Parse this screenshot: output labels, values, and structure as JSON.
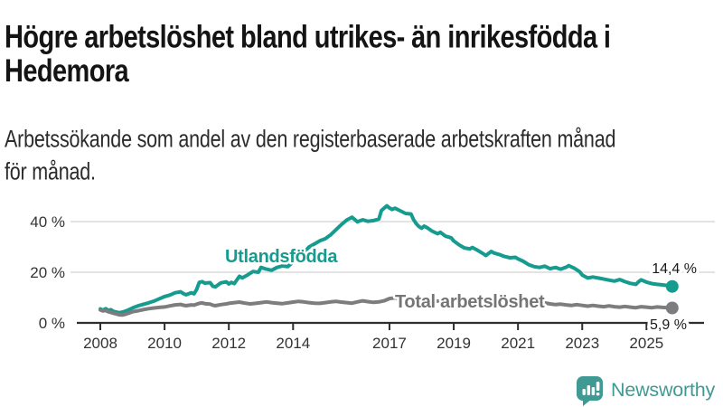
{
  "header": {
    "title_line1": "Högre arbetslöshet bland utrikes- än inrikesfödda i",
    "title_line2": "Hedemora",
    "subtitle_line1": "Arbetssökande som andel av den registerbaserade arbetskraften månad",
    "subtitle_line2": "för månad."
  },
  "footer": {
    "brand": "Newsworthy"
  },
  "colors": {
    "teal": "#169b8f",
    "gray": "#7d7d7f",
    "grid": "#dadada",
    "axis": "#2e2e2e",
    "tick_text": "#333333",
    "annotation_text": "#1a1a1a",
    "logo_teal": "#3f9a93"
  },
  "chart_data": {
    "type": "line",
    "title": "Högre arbetslöshet bland utrikes- än inrikesfödda i Hedemora",
    "subtitle": "Arbetssökande som andel av den registerbaserade arbetskraften månad för månad.",
    "unit": "%",
    "grid": "horizontal",
    "x_axis": {
      "ticks": [
        2008,
        2010,
        2012,
        2014,
        2017,
        2019,
        2021,
        2023,
        2025
      ],
      "range": [
        2007.3,
        2026.9
      ]
    },
    "y_axis": {
      "ticks": [
        {
          "value": 0,
          "label": "0 %"
        },
        {
          "value": 20,
          "label": "20 %"
        },
        {
          "value": 40,
          "label": "40 %"
        }
      ],
      "range": [
        0,
        50
      ]
    },
    "series": [
      {
        "name": "Utlandsfödda",
        "color": "#169b8f",
        "end_label": "14,4 %",
        "end_value": 14.4,
        "points": [
          [
            2008.0,
            5.5
          ],
          [
            2008.08,
            5.0
          ],
          [
            2008.17,
            5.6
          ],
          [
            2008.25,
            4.9
          ],
          [
            2008.33,
            5.2
          ],
          [
            2008.42,
            4.5
          ],
          [
            2008.5,
            4.3
          ],
          [
            2008.58,
            4.0
          ],
          [
            2008.67,
            4.2
          ],
          [
            2008.75,
            4.5
          ],
          [
            2008.83,
            4.9
          ],
          [
            2008.92,
            5.4
          ],
          [
            2009.0,
            5.9
          ],
          [
            2009.17,
            6.7
          ],
          [
            2009.33,
            7.3
          ],
          [
            2009.5,
            7.9
          ],
          [
            2009.67,
            8.6
          ],
          [
            2009.83,
            9.5
          ],
          [
            2010.0,
            10.4
          ],
          [
            2010.17,
            11.0
          ],
          [
            2010.33,
            11.9
          ],
          [
            2010.5,
            12.3
          ],
          [
            2010.58,
            11.6
          ],
          [
            2010.67,
            11.1
          ],
          [
            2010.83,
            11.9
          ],
          [
            2010.92,
            11.5
          ],
          [
            2011.0,
            13.2
          ],
          [
            2011.08,
            16.0
          ],
          [
            2011.17,
            16.3
          ],
          [
            2011.25,
            15.7
          ],
          [
            2011.42,
            15.9
          ],
          [
            2011.5,
            14.5
          ],
          [
            2011.58,
            14.2
          ],
          [
            2011.75,
            15.8
          ],
          [
            2011.92,
            16.2
          ],
          [
            2012.0,
            15.4
          ],
          [
            2012.08,
            16.0
          ],
          [
            2012.17,
            15.5
          ],
          [
            2012.33,
            18.4
          ],
          [
            2012.42,
            17.8
          ],
          [
            2012.58,
            18.9
          ],
          [
            2012.75,
            20.3
          ],
          [
            2012.92,
            20.0
          ],
          [
            2013.0,
            21.9
          ],
          [
            2013.17,
            21.2
          ],
          [
            2013.33,
            20.8
          ],
          [
            2013.5,
            21.9
          ],
          [
            2013.67,
            22.5
          ],
          [
            2013.83,
            22.2
          ],
          [
            2014.0,
            24.0
          ],
          [
            2014.17,
            26.0
          ],
          [
            2014.33,
            27.8
          ],
          [
            2014.5,
            30.0
          ],
          [
            2014.67,
            31.2
          ],
          [
            2014.83,
            32.4
          ],
          [
            2015.0,
            33.2
          ],
          [
            2015.17,
            34.8
          ],
          [
            2015.33,
            36.7
          ],
          [
            2015.5,
            38.8
          ],
          [
            2015.67,
            40.6
          ],
          [
            2015.83,
            41.7
          ],
          [
            2015.92,
            40.8
          ],
          [
            2016.0,
            39.9
          ],
          [
            2016.17,
            40.7
          ],
          [
            2016.33,
            40.1
          ],
          [
            2016.5,
            40.4
          ],
          [
            2016.67,
            41.0
          ],
          [
            2016.75,
            44.4
          ],
          [
            2016.83,
            45.3
          ],
          [
            2016.92,
            46.2
          ],
          [
            2017.0,
            45.4
          ],
          [
            2017.08,
            44.8
          ],
          [
            2017.17,
            45.3
          ],
          [
            2017.33,
            44.3
          ],
          [
            2017.5,
            43.2
          ],
          [
            2017.67,
            43.0
          ],
          [
            2017.75,
            40.8
          ],
          [
            2017.83,
            39.2
          ],
          [
            2017.92,
            38.0
          ],
          [
            2018.0,
            37.4
          ],
          [
            2018.08,
            38.2
          ],
          [
            2018.17,
            37.6
          ],
          [
            2018.33,
            36.2
          ],
          [
            2018.5,
            35.2
          ],
          [
            2018.58,
            35.8
          ],
          [
            2018.75,
            34.2
          ],
          [
            2018.92,
            33.6
          ],
          [
            2019.0,
            32.4
          ],
          [
            2019.17,
            30.8
          ],
          [
            2019.33,
            29.6
          ],
          [
            2019.5,
            29.2
          ],
          [
            2019.58,
            29.8
          ],
          [
            2019.75,
            28.6
          ],
          [
            2019.92,
            27.3
          ],
          [
            2020.0,
            26.6
          ],
          [
            2020.17,
            28.2
          ],
          [
            2020.25,
            27.6
          ],
          [
            2020.42,
            27.0
          ],
          [
            2020.58,
            26.2
          ],
          [
            2020.75,
            25.7
          ],
          [
            2020.92,
            25.9
          ],
          [
            2021.0,
            25.3
          ],
          [
            2021.17,
            24.3
          ],
          [
            2021.33,
            23.0
          ],
          [
            2021.5,
            22.2
          ],
          [
            2021.67,
            21.9
          ],
          [
            2021.83,
            22.4
          ],
          [
            2022.0,
            21.4
          ],
          [
            2022.17,
            21.9
          ],
          [
            2022.33,
            21.2
          ],
          [
            2022.5,
            22.0
          ],
          [
            2022.58,
            22.6
          ],
          [
            2022.75,
            21.6
          ],
          [
            2022.92,
            20.2
          ],
          [
            2023.0,
            18.9
          ],
          [
            2023.17,
            17.7
          ],
          [
            2023.33,
            18.1
          ],
          [
            2023.5,
            17.7
          ],
          [
            2023.67,
            17.3
          ],
          [
            2023.83,
            16.9
          ],
          [
            2024.0,
            16.5
          ],
          [
            2024.17,
            17.1
          ],
          [
            2024.33,
            16.3
          ],
          [
            2024.5,
            15.6
          ],
          [
            2024.67,
            15.2
          ],
          [
            2024.75,
            16.2
          ],
          [
            2024.83,
            17.0
          ],
          [
            2025.0,
            16.1
          ],
          [
            2025.17,
            15.5
          ],
          [
            2025.33,
            15.2
          ],
          [
            2025.5,
            15.0
          ],
          [
            2025.67,
            14.7
          ],
          [
            2025.8,
            14.4
          ]
        ]
      },
      {
        "name": "Total arbetslöshet",
        "color": "#7d7d7f",
        "end_label": "5,9 %",
        "end_value": 5.9,
        "points": [
          [
            2008.0,
            5.1
          ],
          [
            2008.08,
            4.7
          ],
          [
            2008.17,
            4.9
          ],
          [
            2008.25,
            4.4
          ],
          [
            2008.33,
            4.1
          ],
          [
            2008.42,
            3.8
          ],
          [
            2008.5,
            3.5
          ],
          [
            2008.58,
            3.2
          ],
          [
            2008.67,
            3.1
          ],
          [
            2008.75,
            3.3
          ],
          [
            2008.83,
            3.6
          ],
          [
            2008.92,
            4.0
          ],
          [
            2009.0,
            4.4
          ],
          [
            2009.17,
            4.8
          ],
          [
            2009.33,
            5.2
          ],
          [
            2009.5,
            5.6
          ],
          [
            2009.67,
            5.9
          ],
          [
            2009.83,
            6.1
          ],
          [
            2010.0,
            6.3
          ],
          [
            2010.17,
            6.7
          ],
          [
            2010.33,
            7.1
          ],
          [
            2010.5,
            7.3
          ],
          [
            2010.58,
            7.0
          ],
          [
            2010.67,
            6.8
          ],
          [
            2010.83,
            7.1
          ],
          [
            2010.92,
            7.0
          ],
          [
            2011.0,
            7.4
          ],
          [
            2011.08,
            7.7
          ],
          [
            2011.17,
            7.9
          ],
          [
            2011.25,
            7.6
          ],
          [
            2011.42,
            7.4
          ],
          [
            2011.5,
            7.0
          ],
          [
            2011.58,
            6.8
          ],
          [
            2011.75,
            7.2
          ],
          [
            2011.92,
            7.5
          ],
          [
            2012.0,
            7.7
          ],
          [
            2012.17,
            8.0
          ],
          [
            2012.33,
            8.2
          ],
          [
            2012.5,
            7.8
          ],
          [
            2012.67,
            7.5
          ],
          [
            2012.83,
            7.7
          ],
          [
            2013.0,
            8.0
          ],
          [
            2013.17,
            8.3
          ],
          [
            2013.33,
            8.0
          ],
          [
            2013.5,
            7.8
          ],
          [
            2013.67,
            7.6
          ],
          [
            2013.83,
            7.9
          ],
          [
            2014.0,
            8.2
          ],
          [
            2014.17,
            8.5
          ],
          [
            2014.33,
            8.3
          ],
          [
            2014.5,
            8.0
          ],
          [
            2014.67,
            7.8
          ],
          [
            2014.83,
            7.7
          ],
          [
            2015.0,
            8.0
          ],
          [
            2015.17,
            8.3
          ],
          [
            2015.33,
            8.5
          ],
          [
            2015.5,
            8.2
          ],
          [
            2015.67,
            8.0
          ],
          [
            2015.83,
            7.8
          ],
          [
            2016.0,
            8.3
          ],
          [
            2016.17,
            8.7
          ],
          [
            2016.33,
            8.4
          ],
          [
            2016.5,
            8.1
          ],
          [
            2016.67,
            8.3
          ],
          [
            2016.83,
            8.7
          ],
          [
            2017.0,
            9.6
          ],
          [
            2017.17,
            9.9
          ],
          [
            2017.33,
            9.5
          ],
          [
            2017.5,
            9.2
          ],
          [
            2017.67,
            9.5
          ],
          [
            2017.83,
            9.2
          ],
          [
            2018.0,
            8.9
          ],
          [
            2018.17,
            9.3
          ],
          [
            2018.33,
            8.9
          ],
          [
            2018.5,
            8.6
          ],
          [
            2018.67,
            8.4
          ],
          [
            2018.83,
            8.7
          ],
          [
            2019.0,
            8.5
          ],
          [
            2019.17,
            8.2
          ],
          [
            2019.33,
            8.5
          ],
          [
            2019.5,
            8.2
          ],
          [
            2019.67,
            7.9
          ],
          [
            2019.83,
            7.8
          ],
          [
            2020.0,
            8.1
          ],
          [
            2020.17,
            8.9
          ],
          [
            2020.33,
            9.4
          ],
          [
            2020.5,
            9.1
          ],
          [
            2020.67,
            8.8
          ],
          [
            2020.83,
            8.6
          ],
          [
            2021.0,
            8.8
          ],
          [
            2021.17,
            8.4
          ],
          [
            2021.33,
            8.1
          ],
          [
            2021.5,
            7.8
          ],
          [
            2021.67,
            7.6
          ],
          [
            2021.83,
            7.9
          ],
          [
            2022.0,
            7.5
          ],
          [
            2022.17,
            7.2
          ],
          [
            2022.33,
            7.4
          ],
          [
            2022.5,
            7.1
          ],
          [
            2022.67,
            6.9
          ],
          [
            2022.83,
            7.2
          ],
          [
            2023.0,
            6.9
          ],
          [
            2023.17,
            6.6
          ],
          [
            2023.33,
            6.9
          ],
          [
            2023.5,
            6.6
          ],
          [
            2023.67,
            6.4
          ],
          [
            2023.83,
            6.7
          ],
          [
            2024.0,
            6.4
          ],
          [
            2024.17,
            6.2
          ],
          [
            2024.33,
            6.5
          ],
          [
            2024.5,
            6.2
          ],
          [
            2024.67,
            6.0
          ],
          [
            2024.83,
            6.4
          ],
          [
            2025.0,
            6.2
          ],
          [
            2025.17,
            6.0
          ],
          [
            2025.33,
            6.3
          ],
          [
            2025.5,
            6.1
          ],
          [
            2025.67,
            6.0
          ],
          [
            2025.8,
            5.9
          ]
        ]
      }
    ],
    "legend_position": "inline-labels"
  }
}
